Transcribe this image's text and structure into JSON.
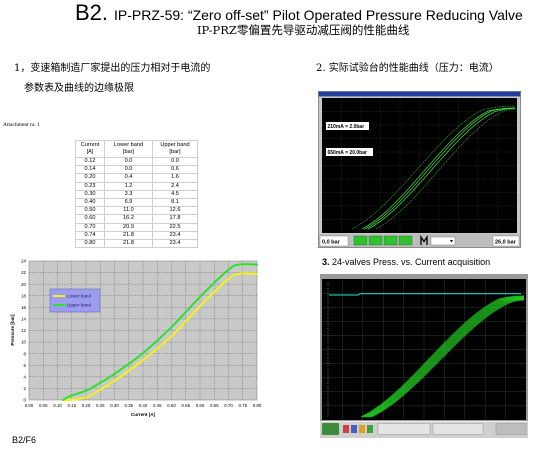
{
  "title": {
    "prefix": "B2.",
    "main": "IP-PRZ-59: “Zero off-set” Pilot Operated Pressure Reducing Valve",
    "subtitle_cn": "IP-PRZ零偏置先导驱动减压阀的性能曲线"
  },
  "section1": {
    "line1": "1，变速箱制造厂家提出的压力相对于电流的",
    "line2": "参数表及曲线的边缘极限"
  },
  "section2": {
    "heading": "2. 实际试验台的性能曲线（压力：电流）"
  },
  "attachment_label": "Attachment nr. 1",
  "table": {
    "headers": [
      {
        "label": "Current",
        "unit": "[A]"
      },
      {
        "label": "Lower band",
        "unit": "[bar]"
      },
      {
        "label": "Upper band",
        "unit": "[bar]"
      }
    ],
    "rows": [
      [
        "0.12",
        "0.0",
        "0.0"
      ],
      [
        "0.14",
        "0.0",
        "0.6"
      ],
      [
        "0.20",
        "0.4",
        "1.6"
      ],
      [
        "0.23",
        "1.2",
        "2.4"
      ],
      [
        "0.30",
        "3.3",
        "4.5"
      ],
      [
        "0.40",
        "6.9",
        "8.1"
      ],
      [
        "0.50",
        "11.0",
        "12.6"
      ],
      [
        "0.60",
        "16.2",
        "17.8"
      ],
      [
        "0.70",
        "20.9",
        "22.5"
      ],
      [
        "0.74",
        "21.8",
        "23.4"
      ],
      [
        "0.80",
        "21.8",
        "23.4"
      ]
    ]
  },
  "chart_data": {
    "type": "line",
    "x": [
      0.12,
      0.14,
      0.2,
      0.23,
      0.3,
      0.4,
      0.5,
      0.6,
      0.7,
      0.74,
      0.8
    ],
    "series": [
      {
        "name": "Lower band",
        "values": [
          0.0,
          0.0,
          0.4,
          1.2,
          3.3,
          6.9,
          11.0,
          16.2,
          20.9,
          21.8,
          21.8
        ],
        "color": "#f2f21c"
      },
      {
        "name": "Upper band",
        "values": [
          0.0,
          0.6,
          1.6,
          2.4,
          4.5,
          8.1,
          12.6,
          17.8,
          22.5,
          23.4,
          23.4
        ],
        "color": "#2ee02e"
      }
    ],
    "xlabel": "Current [A]",
    "ylabel": "Pressure [bar]",
    "xlim": [
      0.0,
      0.8
    ],
    "ylim": [
      0,
      24
    ],
    "xticks": [
      "0.00",
      "0.05",
      "0.10",
      "0.15",
      "0.20",
      "0.25",
      "0.30",
      "0.35",
      "0.40",
      "0.45",
      "0.50",
      "0.55",
      "0.60",
      "0.65",
      "0.70",
      "0.75",
      "0.80"
    ],
    "yticks": [
      0,
      2,
      4,
      6,
      8,
      10,
      12,
      14,
      16,
      18,
      20,
      22,
      24
    ],
    "grid": true,
    "legend": "top-left"
  },
  "bench_display": {
    "cursor_low": "210mA = 2.0bar",
    "cursor_high": "650mA = 20.0bar",
    "scale_min": "0,0 bar",
    "scale_max": "26,0 bar"
  },
  "section3": {
    "number": "3.",
    "caption": "24-valves Press. vs. Current acquisition"
  },
  "footer": "B2/F6"
}
